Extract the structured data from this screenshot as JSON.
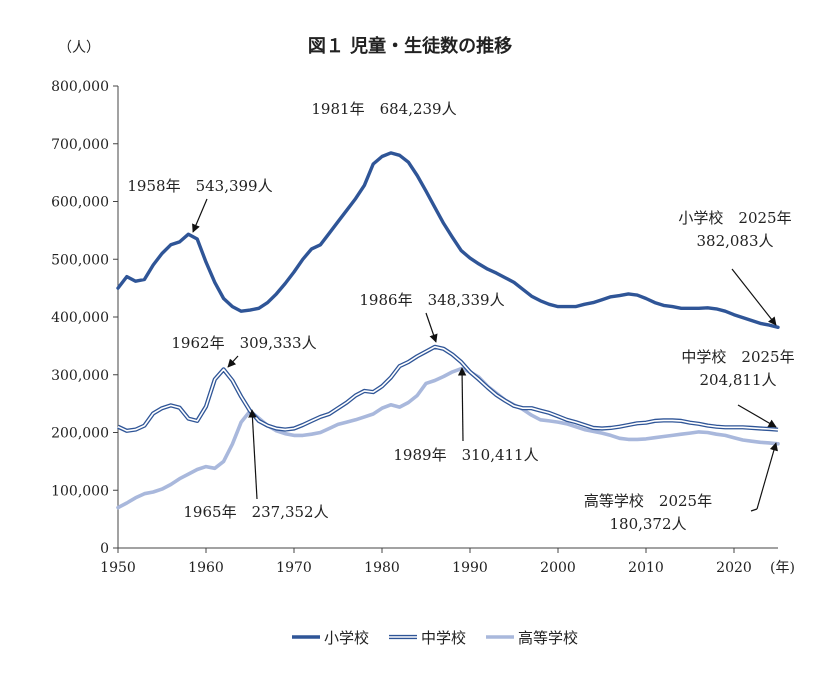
{
  "chart_data": {
    "type": "line",
    "title": "図１ 児童・生徒数の推移",
    "ylabel": "（人）",
    "xlabel": "(年)",
    "xlim": [
      1950,
      2025
    ],
    "ylim": [
      0,
      800000
    ],
    "y_ticks": [
      0,
      100000,
      200000,
      300000,
      400000,
      500000,
      600000,
      700000,
      800000
    ],
    "y_tick_labels": [
      "0",
      "100,000",
      "200,000",
      "300,000",
      "400,000",
      "500,000",
      "600,000",
      "700,000",
      "800,000"
    ],
    "x_ticks": [
      1950,
      1960,
      1970,
      1980,
      1990,
      2000,
      2010,
      2020
    ],
    "x_tick_labels": [
      "1950",
      "1960",
      "1970",
      "1980",
      "1990",
      "2000",
      "2010",
      "2020"
    ],
    "grid": false,
    "legend": "bottom",
    "series": [
      {
        "name": "小学校",
        "color": "#2f5597",
        "style": "solid",
        "x": [
          1950,
          1951,
          1952,
          1953,
          1954,
          1955,
          1956,
          1957,
          1958,
          1959,
          1960,
          1961,
          1962,
          1963,
          1964,
          1965,
          1966,
          1967,
          1968,
          1969,
          1970,
          1971,
          1972,
          1973,
          1974,
          1975,
          1976,
          1977,
          1978,
          1979,
          1980,
          1981,
          1982,
          1983,
          1984,
          1985,
          1986,
          1987,
          1988,
          1989,
          1990,
          1991,
          1992,
          1993,
          1994,
          1995,
          1996,
          1997,
          1998,
          1999,
          2000,
          2001,
          2002,
          2003,
          2004,
          2005,
          2006,
          2007,
          2008,
          2009,
          2010,
          2011,
          2012,
          2013,
          2014,
          2015,
          2016,
          2017,
          2018,
          2019,
          2020,
          2021,
          2022,
          2023,
          2024,
          2025
        ],
        "y": [
          450000,
          470000,
          462000,
          465000,
          490000,
          510000,
          525000,
          530000,
          543399,
          535000,
          495000,
          460000,
          432000,
          418000,
          410000,
          412000,
          415000,
          425000,
          440000,
          458000,
          478000,
          500000,
          518000,
          525000,
          545000,
          565000,
          585000,
          605000,
          628000,
          665000,
          678000,
          684239,
          680000,
          668000,
          645000,
          618000,
          590000,
          562000,
          538000,
          515000,
          502000,
          492000,
          483000,
          476000,
          468000,
          460000,
          448000,
          436000,
          428000,
          422000,
          418000,
          418000,
          418000,
          422000,
          425000,
          430000,
          435000,
          437000,
          440000,
          438000,
          432000,
          425000,
          420000,
          418000,
          415000,
          415000,
          415000,
          416000,
          414000,
          410000,
          404000,
          399000,
          394000,
          389000,
          386000,
          382083
        ]
      },
      {
        "name": "中学校",
        "color": "#2f5597",
        "style": "double",
        "x": [
          1950,
          1951,
          1952,
          1953,
          1954,
          1955,
          1956,
          1957,
          1958,
          1959,
          1960,
          1961,
          1962,
          1963,
          1964,
          1965,
          1966,
          1967,
          1968,
          1969,
          1970,
          1971,
          1972,
          1973,
          1974,
          1975,
          1976,
          1977,
          1978,
          1979,
          1980,
          1981,
          1982,
          1983,
          1984,
          1985,
          1986,
          1987,
          1988,
          1989,
          1990,
          1991,
          1992,
          1993,
          1994,
          1995,
          1996,
          1997,
          1998,
          1999,
          2000,
          2001,
          2002,
          2003,
          2004,
          2005,
          2006,
          2007,
          2008,
          2009,
          2010,
          2011,
          2012,
          2013,
          2014,
          2015,
          2016,
          2017,
          2018,
          2019,
          2020,
          2021,
          2022,
          2023,
          2024,
          2025
        ],
        "y": [
          210000,
          203000,
          205000,
          212000,
          233000,
          242000,
          247000,
          243000,
          224000,
          220000,
          245000,
          292000,
          309333,
          290000,
          262000,
          237352,
          220000,
          212000,
          207000,
          205000,
          207000,
          213000,
          220000,
          227000,
          232000,
          242000,
          252000,
          264000,
          272000,
          270000,
          280000,
          295000,
          315000,
          322000,
          332000,
          340000,
          348339,
          345000,
          335000,
          322000,
          305000,
          292000,
          278000,
          265000,
          255000,
          246000,
          242000,
          242000,
          238000,
          234000,
          228000,
          222000,
          218000,
          213000,
          208000,
          207000,
          208000,
          210000,
          213000,
          216000,
          217000,
          220000,
          221000,
          221000,
          220000,
          217000,
          215000,
          212000,
          210000,
          209000,
          209000,
          209000,
          208000,
          207000,
          206000,
          204811
        ]
      },
      {
        "name": "高等学校",
        "color": "#a9b8dc",
        "style": "solid",
        "x": [
          1950,
          1951,
          1952,
          1953,
          1954,
          1955,
          1956,
          1957,
          1958,
          1959,
          1960,
          1961,
          1962,
          1963,
          1964,
          1965,
          1966,
          1967,
          1968,
          1969,
          1970,
          1971,
          1972,
          1973,
          1974,
          1975,
          1976,
          1977,
          1978,
          1979,
          1980,
          1981,
          1982,
          1983,
          1984,
          1985,
          1986,
          1987,
          1988,
          1989,
          1990,
          1991,
          1992,
          1993,
          1994,
          1995,
          1996,
          1997,
          1998,
          1999,
          2000,
          2001,
          2002,
          2003,
          2004,
          2005,
          2006,
          2007,
          2008,
          2009,
          2010,
          2011,
          2012,
          2013,
          2014,
          2015,
          2016,
          2017,
          2018,
          2019,
          2020,
          2021,
          2022,
          2023,
          2024,
          2025
        ],
        "y": [
          70000,
          78000,
          87000,
          94000,
          97000,
          102000,
          110000,
          120000,
          128000,
          136000,
          141000,
          138000,
          150000,
          180000,
          218000,
          237000,
          225000,
          212000,
          203000,
          198000,
          195000,
          195000,
          197000,
          200000,
          207000,
          214000,
          218000,
          222000,
          227000,
          232000,
          242000,
          248000,
          244000,
          252000,
          264000,
          285000,
          290000,
          297000,
          305000,
          310411,
          305000,
          296000,
          280000,
          268000,
          256000,
          248000,
          240000,
          230000,
          222000,
          220000,
          218000,
          215000,
          210000,
          205000,
          202000,
          199000,
          195000,
          190000,
          188000,
          188000,
          189000,
          191000,
          193000,
          195000,
          197000,
          199000,
          201000,
          200000,
          197000,
          195000,
          191000,
          187000,
          185000,
          183000,
          182000,
          180372
        ]
      }
    ],
    "annotations": [
      {
        "text": "1958年　543,399人",
        "x": 1958,
        "y": 543399
      },
      {
        "text": "1981年　684,239人",
        "x": 1981,
        "y": 684239
      },
      {
        "text": "1962年　309,333人",
        "x": 1962,
        "y": 309333
      },
      {
        "text": "1986年　348,339人",
        "x": 1986,
        "y": 348339
      },
      {
        "text": "1965年　237,352人",
        "x": 1965,
        "y": 237352
      },
      {
        "text": "1989年　310,411人",
        "x": 1989,
        "y": 310411
      },
      {
        "text": [
          "小学校　2025年",
          "382,083人"
        ],
        "x": 2025,
        "y": 382083
      },
      {
        "text": [
          "中学校　2025年",
          "204,811人"
        ],
        "x": 2025,
        "y": 204811
      },
      {
        "text": [
          "高等学校　2025年",
          "180,372人"
        ],
        "x": 2025,
        "y": 180372
      }
    ]
  }
}
